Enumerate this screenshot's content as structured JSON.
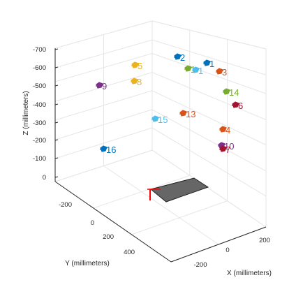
{
  "chart_data": {
    "type": "scatter",
    "title": "",
    "xlabel": "X (millimeters)",
    "ylabel": "Y (millimeters)",
    "zlabel": "Z (millimeters)",
    "x_ticks": [
      "-200",
      "0",
      "200"
    ],
    "y_ticks": [
      "-200",
      "0",
      "200",
      "400"
    ],
    "z_ticks": [
      "-700",
      "-600",
      "-500",
      "-400",
      "-300",
      "-200",
      "-100",
      "0"
    ],
    "z_axis_reversed": true,
    "grid": true,
    "colors": {
      "blue": "#0072BD",
      "orange": "#D95319",
      "yellow": "#EDB120",
      "purple": "#7E2F8E",
      "green": "#77AC30",
      "cyan": "#4DBEEE",
      "maroon": "#A2142F",
      "axis": "#262626",
      "grid": "#e6e6e6",
      "board": "#666666",
      "marker": "#ff0000"
    },
    "points": [
      {
        "label": "2",
        "color": "blue"
      },
      {
        "label": "1",
        "color": "green"
      },
      {
        "label": "1",
        "color": "cyan"
      },
      {
        "label": "1",
        "color": "blue"
      },
      {
        "label": "3",
        "color": "orange"
      },
      {
        "label": "5",
        "color": "yellow"
      },
      {
        "label": "8",
        "color": "yellow"
      },
      {
        "label": "9",
        "color": "purple"
      },
      {
        "label": "14",
        "color": "green"
      },
      {
        "label": "6",
        "color": "maroon"
      },
      {
        "label": "13",
        "color": "orange"
      },
      {
        "label": "15",
        "color": "cyan"
      },
      {
        "label": "4",
        "color": "orange"
      },
      {
        "label": "10",
        "color": "purple"
      },
      {
        "label": "7",
        "color": "maroon"
      },
      {
        "label": "16",
        "color": "blue"
      }
    ]
  }
}
